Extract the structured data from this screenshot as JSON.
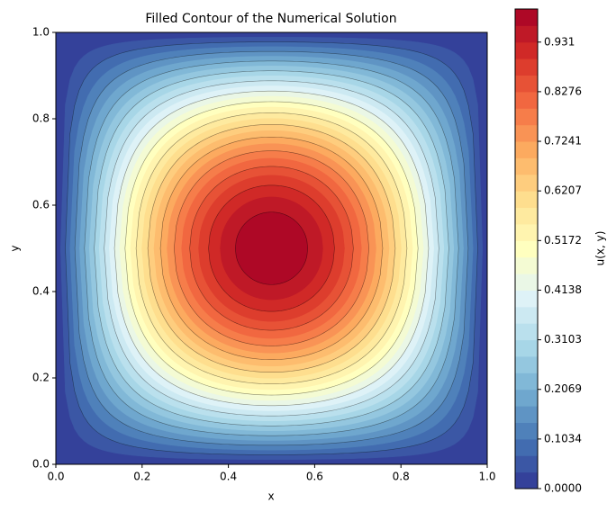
{
  "chart_data": {
    "type": "contourf",
    "title": "Filled Contour of the Numerical Solution",
    "xlabel": "x",
    "ylabel": "y",
    "colorbar_label": "u(x, y)",
    "cmap": "RdYlBu_r",
    "xlim": [
      0,
      1
    ],
    "ylim": [
      0,
      1
    ],
    "xticks": [
      {
        "value": 0,
        "label": "0.0"
      },
      {
        "value": 0.2,
        "label": "0.2"
      },
      {
        "value": 0.4,
        "label": "0.4"
      },
      {
        "value": 0.6,
        "label": "0.6"
      },
      {
        "value": 0.8,
        "label": "0.8"
      },
      {
        "value": 1,
        "label": "1.0"
      }
    ],
    "yticks": [
      {
        "value": 0,
        "label": "0.0"
      },
      {
        "value": 0.2,
        "label": "0.2"
      },
      {
        "value": 0.4,
        "label": "0.4"
      },
      {
        "value": 0.6,
        "label": "0.6"
      },
      {
        "value": 0.8,
        "label": "0.8"
      },
      {
        "value": 1,
        "label": "1.0"
      }
    ],
    "levels": [
      0,
      0.0345,
      0.069,
      0.1034,
      0.1379,
      0.1724,
      0.2069,
      0.2414,
      0.2759,
      0.3103,
      0.3448,
      0.3793,
      0.4138,
      0.4483,
      0.4828,
      0.5172,
      0.5517,
      0.5862,
      0.6207,
      0.6552,
      0.6897,
      0.7241,
      0.7586,
      0.7931,
      0.8276,
      0.8621,
      0.8966,
      0.931,
      0.9655,
      1
    ],
    "clim": [
      0,
      1
    ],
    "cticks": [
      {
        "value": 0,
        "label": "0.0000"
      },
      0.1034,
      0.2069,
      0.3103,
      0.4138,
      0.5172,
      0.6207,
      0.7241,
      0.8276,
      0.931
    ]
  }
}
